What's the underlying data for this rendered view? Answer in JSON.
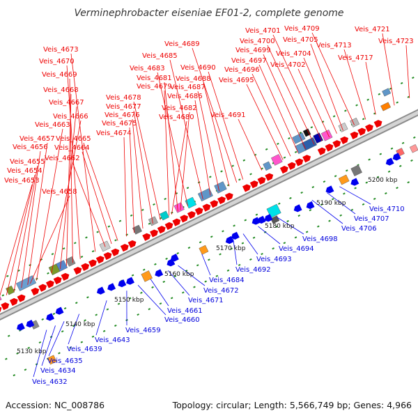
{
  "title": "Verminephrobacter eiseniae EF01-2, complete genome",
  "accession": "Accession: NC_008786",
  "summary": "Topology: circular; Length: 5,566,749 bp; Genes: 4,966",
  "colors": {
    "forward_label": "#ee0000",
    "reverse_label": "#0000dd",
    "backbone": "#a9a9a9",
    "tick": "#228b22"
  },
  "scale_labels": [
    "5130 kbp",
    "5140 kbp",
    "5150 kbp",
    "5160 kbp",
    "5170 kbp",
    "5180 kbp",
    "5190 kbp",
    "5200 kbp"
  ],
  "forward_labels": [
    "Veis_4653",
    "Veis_4654",
    "Veis_4655",
    "Veis_4656",
    "Veis_4657",
    "Veis_4658",
    "Veis_4662",
    "Veis_4663",
    "Veis_4664",
    "Veis_4665",
    "Veis_4666",
    "Veis_4667",
    "Veis_4668",
    "Veis_4669",
    "Veis_4670",
    "Veis_4673",
    "Veis_4674",
    "Veis_4675",
    "Veis_4676",
    "Veis_4677",
    "Veis_4678",
    "Veis_4679",
    "Veis_4680",
    "Veis_4681",
    "Veis_4682",
    "Veis_4683",
    "Veis_4685",
    "Veis_4686",
    "Veis_4687",
    "Veis_4688",
    "Veis_4689",
    "Veis_4690",
    "Veis_4691",
    "Veis_4695",
    "Veis_4696",
    "Veis_4697",
    "Veis_4699",
    "Veis_4700",
    "Veis_4701",
    "Veis_4702",
    "Veis_4704",
    "Veis_4705",
    "Veis_4709",
    "Veis_4713",
    "Veis_4717",
    "Veis_4721",
    "Veis_4723"
  ],
  "reverse_labels": [
    "Veis_4632",
    "Veis_4634",
    "Veis_4635",
    "Veis_4639",
    "Veis_4643",
    "Veis_4659",
    "Veis_4660",
    "Veis_4661",
    "Veis_4671",
    "Veis_4672",
    "Veis_4684",
    "Veis_4692",
    "Veis_4693",
    "Veis_4694",
    "Veis_4698",
    "Veis_4706",
    "Veis_4707",
    "Veis_4710"
  ]
}
